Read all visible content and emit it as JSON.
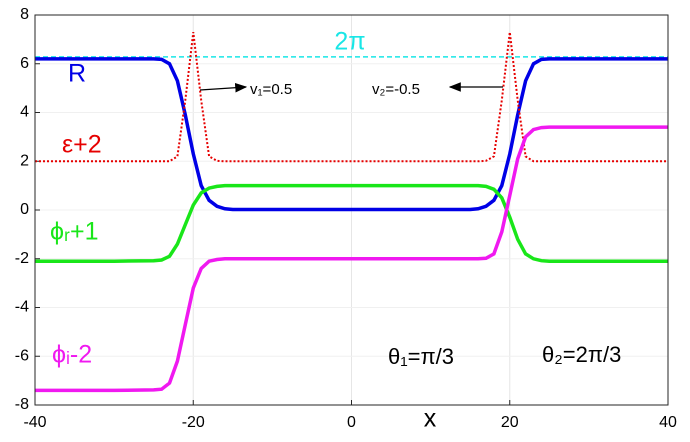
{
  "chart_data": {
    "type": "line",
    "x": [
      -40,
      -30,
      -25,
      -24,
      -23,
      -22,
      -21,
      -20,
      -19,
      -18,
      -17,
      -16,
      -15,
      -10,
      0,
      10,
      15,
      16,
      17,
      18,
      19,
      20,
      21,
      22,
      23,
      24,
      25,
      30,
      40
    ],
    "series": [
      {
        "name": "R",
        "color": "#0000e6",
        "style": "solid",
        "values": [
          6.2,
          6.2,
          6.2,
          6.18,
          6.0,
          5.3,
          3.9,
          2.3,
          1.0,
          0.4,
          0.15,
          0.05,
          0.02,
          0.02,
          0.02,
          0.02,
          0.02,
          0.05,
          0.15,
          0.4,
          1.0,
          2.3,
          3.9,
          5.3,
          6.0,
          6.18,
          6.2,
          6.2,
          6.2
        ]
      },
      {
        "name": "ε+2",
        "color": "#e60000",
        "style": "dotted",
        "values": [
          2,
          2,
          2,
          2,
          2.0,
          2.2,
          4.5,
          7.3,
          4.5,
          2.2,
          2.02,
          2,
          2,
          2,
          2,
          2,
          2,
          2,
          2.02,
          2.2,
          4.5,
          7.3,
          4.5,
          2.2,
          2.0,
          2,
          2,
          2,
          2
        ]
      },
      {
        "name": "ϕᵣ+1",
        "color": "#19e619",
        "style": "solid",
        "values": [
          -2.1,
          -2.1,
          -2.08,
          -2.05,
          -1.9,
          -1.4,
          -0.6,
          0.2,
          0.7,
          0.9,
          0.97,
          1.0,
          1.0,
          1.0,
          1.0,
          1.0,
          1.0,
          1.0,
          0.97,
          0.85,
          0.5,
          -0.3,
          -1.2,
          -1.8,
          -2.0,
          -2.08,
          -2.1,
          -2.1,
          -2.1
        ]
      },
      {
        "name": "ϕᵢ-2",
        "color": "#f019f0",
        "style": "solid",
        "values": [
          -7.4,
          -7.4,
          -7.38,
          -7.35,
          -7.1,
          -6.2,
          -4.7,
          -3.2,
          -2.4,
          -2.1,
          -2.03,
          -2.0,
          -2.0,
          -2.0,
          -2.0,
          -2.0,
          -2.0,
          -2.0,
          -1.98,
          -1.8,
          -0.9,
          0.6,
          2.1,
          3.0,
          3.3,
          3.38,
          3.4,
          3.4,
          3.4
        ]
      }
    ],
    "reference_line": {
      "value": 6.283,
      "label": "2π",
      "color": "#19e6e6"
    },
    "annotations": [
      "v₁=0.5",
      "v₂=-0.5",
      "θ₁=π/3",
      "θ₂=2π/3"
    ],
    "xlabel": "x",
    "xlim": [
      -40,
      40
    ],
    "ylim": [
      -8,
      8
    ],
    "xticks": [
      -40,
      -20,
      0,
      20,
      40
    ],
    "yticks": [
      -8,
      -6,
      -4,
      -2,
      0,
      2,
      4,
      6,
      8
    ],
    "grid": true
  }
}
